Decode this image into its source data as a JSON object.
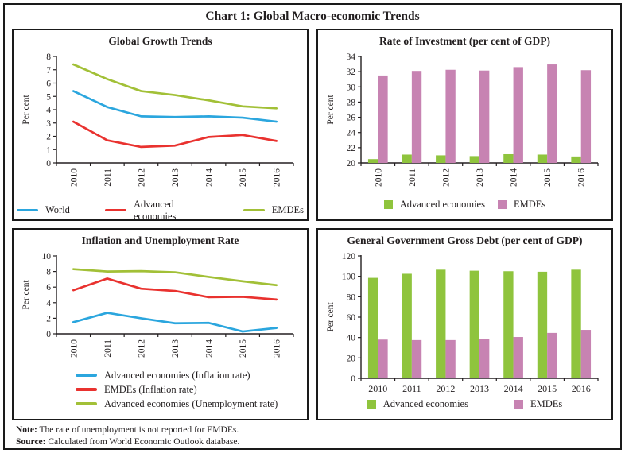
{
  "title": "Chart 1: Global Macro-economic Trends",
  "colors": {
    "blue": "#2BA6DE",
    "red": "#E9322F",
    "green_line": "#A2C037",
    "green_bar": "#8FC43D",
    "pink_bar": "#C783B2",
    "axis": "#231F20",
    "border": "#1A1A1A"
  },
  "notes": {
    "note_label": "Note:",
    "note_text": " The rate of unemployment is not reported for EMDEs.",
    "source_label": "Source:",
    "source_text": " Calculated from World Economic Outlook database."
  },
  "chart_data": [
    {
      "type": "line",
      "title": "Global Growth Trends",
      "ylabel": "Per cent",
      "categories": [
        "2010",
        "2011",
        "2012",
        "2013",
        "2014",
        "2015",
        "2016"
      ],
      "ylim": [
        0,
        8
      ],
      "ytick_step": 1,
      "x_label_rotation": "vertical",
      "legend_layout": "row-spread",
      "series": [
        {
          "name": "World",
          "color_key": "blue",
          "values": [
            5.4,
            4.2,
            3.5,
            3.45,
            3.5,
            3.4,
            3.1
          ]
        },
        {
          "name": "Advanced economies",
          "color_key": "red",
          "values": [
            3.1,
            1.7,
            1.2,
            1.3,
            1.95,
            2.1,
            1.65
          ]
        },
        {
          "name": "EMDEs",
          "color_key": "green_line",
          "values": [
            7.4,
            6.3,
            5.4,
            5.1,
            4.7,
            4.25,
            4.1
          ]
        }
      ]
    },
    {
      "type": "bar",
      "title": "Rate of Investment (per cent of GDP)",
      "ylabel": "Per cent",
      "categories": [
        "2010",
        "2011",
        "2012",
        "2013",
        "2014",
        "2015",
        "2016"
      ],
      "ylim": [
        20,
        34
      ],
      "ytick_step": 2,
      "x_label_rotation": "vertical",
      "legend_layout": "row",
      "series": [
        {
          "name": "Advanced economies",
          "color_key": "green_bar",
          "values": [
            20.5,
            21.1,
            21.0,
            20.9,
            21.15,
            21.1,
            20.85
          ]
        },
        {
          "name": "EMDEs",
          "color_key": "pink_bar",
          "values": [
            31.5,
            32.1,
            32.25,
            32.15,
            32.6,
            32.95,
            32.2
          ]
        }
      ]
    },
    {
      "type": "line",
      "title": "Inflation and Unemployment Rate",
      "ylabel": "Per cent",
      "categories": [
        "2010",
        "2011",
        "2012",
        "2013",
        "2014",
        "2015",
        "2016"
      ],
      "ylim": [
        0,
        10
      ],
      "ytick_step": 2,
      "x_label_rotation": "vertical",
      "legend_layout": "column",
      "series": [
        {
          "name": "Advanced economies (Inflation rate)",
          "color_key": "blue",
          "values": [
            1.5,
            2.7,
            2.0,
            1.35,
            1.4,
            0.3,
            0.75
          ]
        },
        {
          "name": "EMDEs (Inflation rate)",
          "color_key": "red",
          "values": [
            5.6,
            7.1,
            5.8,
            5.5,
            4.7,
            4.75,
            4.4
          ]
        },
        {
          "name": "Advanced economies (Unemployment rate)",
          "color_key": "green_line",
          "values": [
            8.3,
            8.0,
            8.05,
            7.9,
            7.3,
            6.75,
            6.25
          ]
        }
      ]
    },
    {
      "type": "bar",
      "title": "General Government Gross Debt (per cent of GDP)",
      "ylabel": "Per cent",
      "categories": [
        "2010",
        "2011",
        "2012",
        "2013",
        "2014",
        "2015",
        "2016"
      ],
      "ylim": [
        0,
        120
      ],
      "ytick_step": 20,
      "x_label_rotation": "horizontal",
      "legend_layout": "row-wide",
      "series": [
        {
          "name": "Advanced economies",
          "color_key": "green_bar",
          "values": [
            98.5,
            102.5,
            106.5,
            105.5,
            105.0,
            104.5,
            106.5
          ]
        },
        {
          "name": "EMDEs",
          "color_key": "pink_bar",
          "values": [
            38.0,
            37.5,
            37.5,
            38.5,
            40.5,
            44.5,
            47.5
          ]
        }
      ]
    }
  ]
}
